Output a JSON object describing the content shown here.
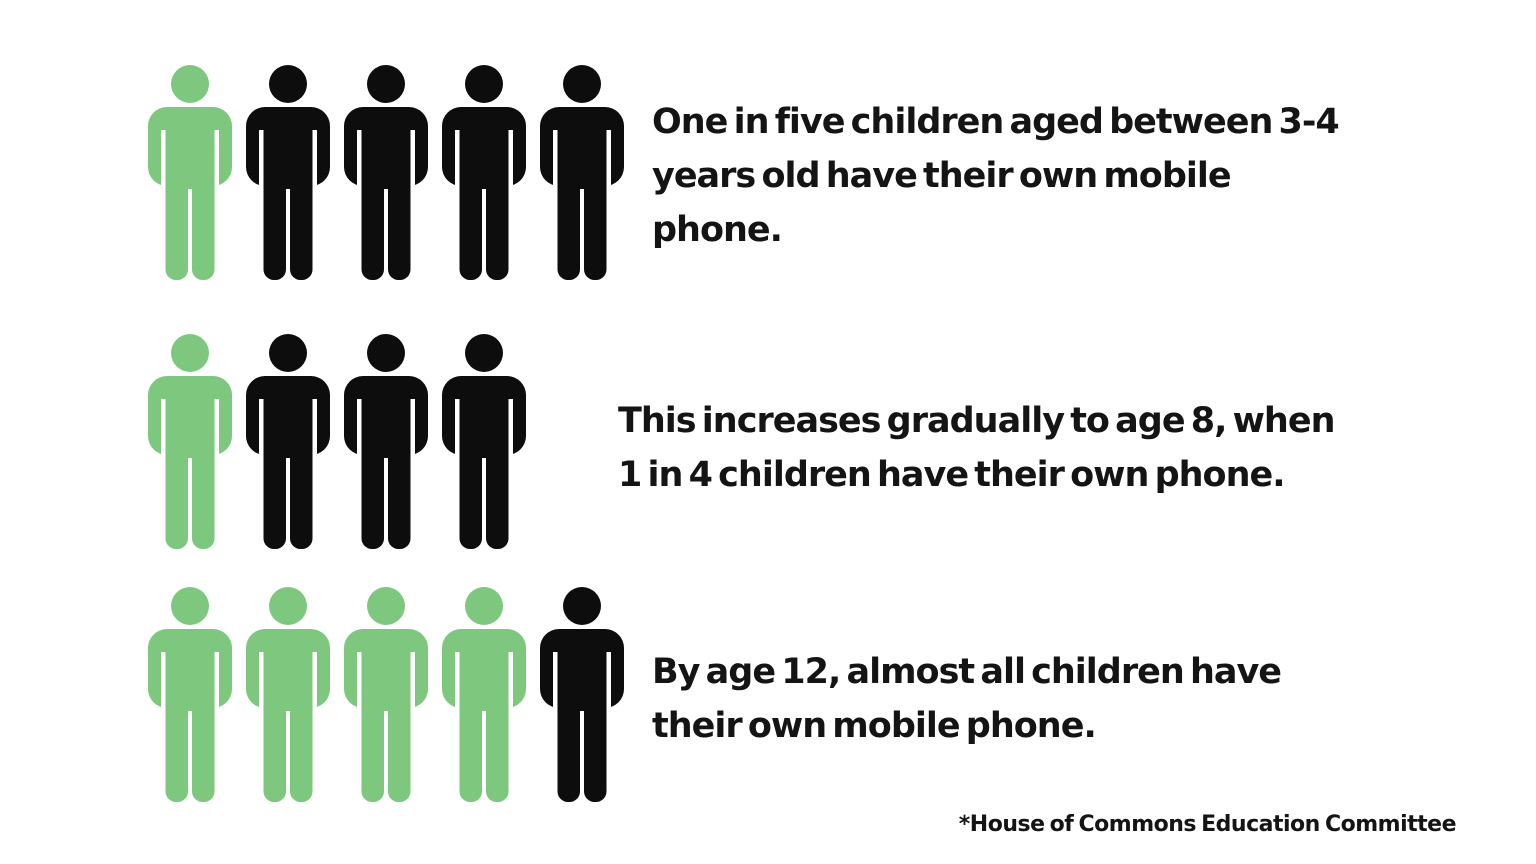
{
  "page": {
    "background": "#ffffff"
  },
  "colors": {
    "highlight_green": "#7dc87e",
    "figure_black": "#0d0d0d",
    "text": "#141414"
  },
  "rows": [
    {
      "icons_total": 5,
      "icons_highlighted": 1,
      "caption": "One in five children aged between 3-4\nyears old have their own mobile\nphone."
    },
    {
      "icons_total": 4,
      "icons_highlighted": 1,
      "caption": "This increases gradually to age 8, when\n1 in 4 children have their own phone."
    },
    {
      "icons_total": 5,
      "icons_highlighted": 4,
      "caption": "By age 12, almost all children have\ntheir own mobile phone."
    }
  ],
  "source_note": "*House of Commons Education Committee",
  "chart_data": {
    "type": "pictograph",
    "title": "",
    "categories": [
      "3-4 years old",
      "age 8",
      "age 12"
    ],
    "series": [
      {
        "category": "3-4 years old",
        "icons_total": 5,
        "icons_highlighted": 1,
        "ratio_shown": "1 in 5",
        "caption": "One in five children aged between 3-4 years old have their own mobile phone."
      },
      {
        "category": "age 8",
        "icons_total": 4,
        "icons_highlighted": 1,
        "ratio_shown": "1 in 4",
        "caption": "This increases gradually to age 8, when 1 in 4 children have their own phone."
      },
      {
        "category": "age 12",
        "icons_total": 5,
        "icons_highlighted": 4,
        "ratio_shown": "4 in 5 (almost all)",
        "caption": "By age 12, almost all children have their own mobile phone."
      }
    ],
    "legend": "green person icon = child with own mobile phone, black person icon = child without",
    "source": "*House of Commons Education Committee",
    "colors": {
      "highlighted": "#7dc87e",
      "default": "#0d0d0d",
      "background": "#ffffff"
    }
  }
}
